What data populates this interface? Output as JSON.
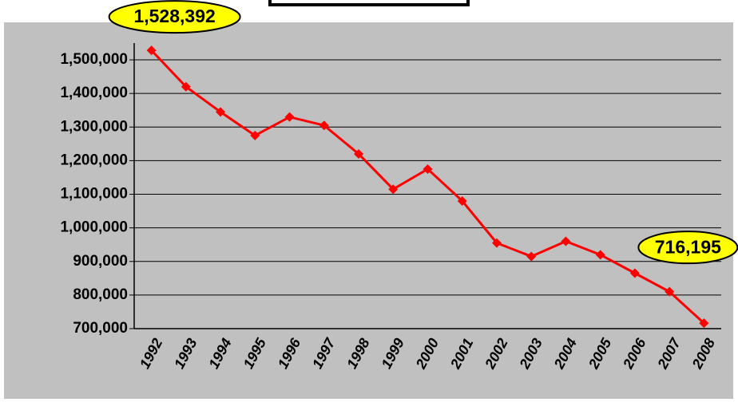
{
  "chart_data": {
    "type": "line",
    "categories": [
      "1992",
      "1993",
      "1994",
      "1995",
      "1996",
      "1997",
      "1998",
      "1999",
      "2000",
      "2001",
      "2002",
      "2003",
      "2004",
      "2005",
      "2006",
      "2007",
      "2008"
    ],
    "values": [
      1528392,
      1420000,
      1345000,
      1275000,
      1330000,
      1305000,
      1220000,
      1115000,
      1175000,
      1080000,
      955000,
      915000,
      960000,
      920000,
      865000,
      810000,
      716195
    ],
    "value_labels": [
      "1,528,392",
      null,
      null,
      null,
      null,
      null,
      null,
      null,
      null,
      null,
      null,
      null,
      null,
      null,
      null,
      null,
      "716,195"
    ],
    "color": "#ff0000",
    "ylim": [
      700000,
      1550000
    ],
    "yticks": [
      {
        "value": 700000,
        "label": "700,000"
      },
      {
        "value": 800000,
        "label": "800,000"
      },
      {
        "value": 900000,
        "label": "900,000"
      },
      {
        "value": 1000000,
        "label": "1,000,000"
      },
      {
        "value": 1100000,
        "label": "1,100,000"
      },
      {
        "value": 1200000,
        "label": "1,200,000"
      },
      {
        "value": 1300000,
        "label": "1,300,000"
      },
      {
        "value": 1400000,
        "label": "1,400,000"
      },
      {
        "value": 1500000,
        "label": "1,500,000"
      }
    ],
    "grid": true
  }
}
